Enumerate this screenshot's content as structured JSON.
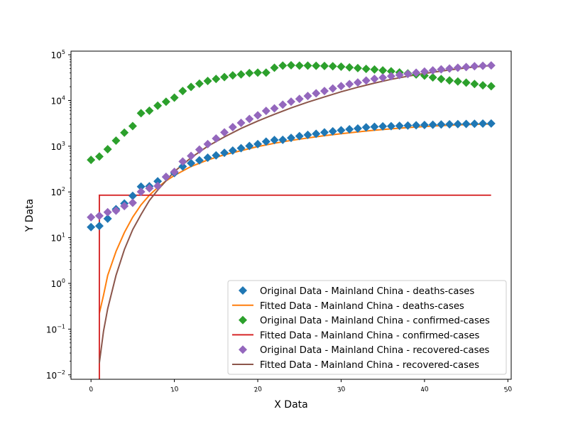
{
  "chart_data": {
    "type": "scatter",
    "title": "",
    "xlabel": "X Data",
    "ylabel": "Y Data",
    "xlim": [
      -2.4,
      50.4
    ],
    "ylim": [
      0.008,
      120000
    ],
    "yscale": "log",
    "grid": false,
    "legend_position": "lower-right",
    "x_ticks": [
      0,
      10,
      20,
      30,
      40,
      50
    ],
    "y_ticks": [
      {
        "value": 0.01,
        "base": "10",
        "exp": "−2"
      },
      {
        "value": 0.1,
        "base": "10",
        "exp": "−1"
      },
      {
        "value": 1,
        "base": "10",
        "exp": "0"
      },
      {
        "value": 10,
        "base": "10",
        "exp": "1"
      },
      {
        "value": 100,
        "base": "10",
        "exp": "2"
      },
      {
        "value": 1000,
        "base": "10",
        "exp": "3"
      },
      {
        "value": 10000,
        "base": "10",
        "exp": "4"
      },
      {
        "value": 100000,
        "base": "10",
        "exp": "5"
      }
    ],
    "x": [
      0,
      1,
      2,
      3,
      4,
      5,
      6,
      7,
      8,
      9,
      10,
      11,
      12,
      13,
      14,
      15,
      16,
      17,
      18,
      19,
      20,
      21,
      22,
      23,
      24,
      25,
      26,
      27,
      28,
      29,
      30,
      31,
      32,
      33,
      34,
      35,
      36,
      37,
      38,
      39,
      40,
      41,
      42,
      43,
      44,
      45,
      46,
      47,
      48
    ],
    "series": [
      {
        "name": "Original Data - Mainland China - deaths-cases",
        "kind": "markers",
        "color": "#1f77b4",
        "values": [
          17,
          18,
          26,
          42,
          56,
          82,
          131,
          133,
          171,
          213,
          259,
          361,
          425,
          490,
          562,
          632,
          717,
          804,
          904,
          1011,
          1111,
          1259,
          1368,
          1381,
          1524,
          1666,
          1772,
          1870,
          2006,
          2121,
          2239,
          2348,
          2445,
          2595,
          2665,
          2717,
          2746,
          2790,
          2837,
          2872,
          2914,
          2947,
          2983,
          3015,
          3044,
          3072,
          3100,
          3123,
          3139
        ]
      },
      {
        "name": "Fitted Data - Mainland China - deaths-cases",
        "kind": "line",
        "color": "#ff7f0e",
        "x": [
          1,
          1.5,
          2,
          3,
          4,
          5,
          6,
          7,
          8,
          9,
          10,
          12,
          14,
          16,
          18,
          20,
          22,
          24,
          26,
          28,
          30,
          32,
          34,
          36,
          38,
          40,
          42,
          44,
          46,
          48
        ],
        "values": [
          0.22,
          0.55,
          1.5,
          5,
          13,
          28,
          52,
          85,
          125,
          175,
          230,
          360,
          500,
          650,
          800,
          980,
          1160,
          1340,
          1520,
          1700,
          1880,
          2060,
          2230,
          2400,
          2560,
          2700,
          2820,
          2920,
          3000,
          3060
        ]
      },
      {
        "name": "Original Data - Mainland China - confirmed-cases",
        "kind": "markers",
        "color": "#2ca02c",
        "values": [
          503,
          595,
          858,
          1325,
          1984,
          2761,
          5279,
          5987,
          7710,
          9381,
          11540,
          16150,
          19760,
          23330,
          26770,
          29560,
          32460,
          35360,
          37240,
          39810,
          40600,
          40600,
          52000,
          58000,
          59000,
          58000,
          58000,
          57500,
          57000,
          56000,
          55000,
          53000,
          51000,
          49000,
          47500,
          45500,
          43500,
          41000,
          39000,
          37000,
          35000,
          32000,
          29500,
          27500,
          26000,
          24500,
          23000,
          21500,
          20500
        ]
      },
      {
        "name": "Fitted Data - Mainland China - confirmed-cases",
        "kind": "step",
        "color": "#d62728",
        "x": [
          1,
          1,
          48
        ],
        "values": [
          0.008,
          85,
          85
        ]
      },
      {
        "name": "Original Data - Mainland China - recovered-cases",
        "kind": "markers",
        "color": "#9467bd",
        "values": [
          28,
          30,
          36,
          39,
          49,
          58,
          101,
          120,
          135,
          214,
          275,
          463,
          614,
          843,
          1115,
          1477,
          2011,
          2616,
          3244,
          3946,
          4740,
          5911,
          6723,
          8096,
          9419,
          10844,
          12552,
          14376,
          16155,
          18264,
          20659,
          22888,
          24734,
          27323,
          29745,
          31608,
          34000,
          36000,
          38000,
          40500,
          43000,
          45500,
          48000,
          50000,
          52000,
          54000,
          56000,
          57500,
          58500
        ]
      },
      {
        "name": "Fitted Data - Mainland China - recovered-cases",
        "kind": "line",
        "color": "#8c564b",
        "x": [
          1,
          1.5,
          2,
          3,
          4,
          5,
          6,
          7,
          8,
          10,
          12,
          14,
          16,
          18,
          20,
          22,
          24,
          26,
          28,
          30,
          32,
          34,
          36,
          38,
          40,
          42,
          44,
          46,
          48
        ],
        "values": [
          0.018,
          0.09,
          0.28,
          1.5,
          5.5,
          15,
          32,
          65,
          110,
          280,
          560,
          1000,
          1600,
          2450,
          3550,
          5000,
          6900,
          9200,
          12000,
          15500,
          19500,
          24000,
          29000,
          34000,
          39000,
          44000,
          49000,
          54000,
          58000
        ]
      }
    ]
  }
}
